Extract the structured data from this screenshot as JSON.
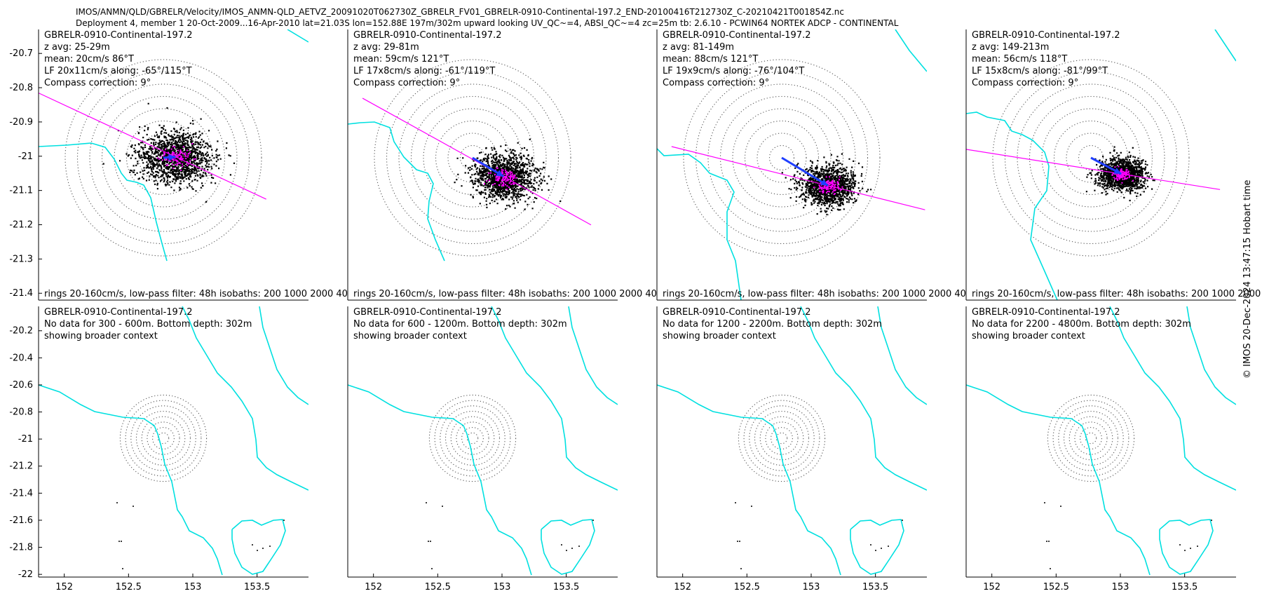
{
  "header": {
    "line1": "IMOS/ANMN/QLD/GBRELR/Velocity/IMOS_ANMN-QLD_AETVZ_20091020T062730Z_GBRELR_FV01_GBRELR-0910-Continental-197.2_END-20100416T212730Z_C-20210421T001854Z.nc",
    "line2": "Deployment 4, member 1 20-Oct-2009...16-Apr-2010 lat=21.03S lon=152.88E 197m/302m upward looking UV_QC~=4, ABSI_QC~=4 zc=25m tb: 2.6.10 - PCWIN64 NORTEK ADCP - CONTINENTAL"
  },
  "copyright": "© IMOS 20-Dec-2024 13:47:15 Hobart time",
  "colors": {
    "coast": "#00e0e0",
    "scatter": "#000000",
    "mean_arrow": "#1f3fff",
    "lf_scatter": "#ff00ff",
    "ring": "#555555",
    "axis": "#000000"
  },
  "chart_data": [
    {
      "type": "scatter",
      "panel": "top-1",
      "site": "GBRELR-0910-Continental-197.2",
      "z_avg": "z avg: 25-29m",
      "mean": "mean: 20cm/s 86°T",
      "lf": "LF 20x11cm/s along: -65°/115°T",
      "compass": "Compass correction: 9°",
      "footer": "rings 20-160cm/s, low-pass filter: 48h isobaths: 200 1000 2000 40",
      "ylim": [
        -21.42,
        -20.63
      ],
      "yticks": [
        "-20.7",
        "-20.8",
        "-20.9",
        "-21",
        "-21.1",
        "-21.2",
        "-21.3",
        "-21.4"
      ],
      "mean_speed_cms": 20,
      "mean_dir_degT": 86,
      "lf_major_cms": 20,
      "lf_minor_cms": 11,
      "along_degT": 115,
      "spread_cms": 28
    },
    {
      "type": "scatter",
      "panel": "top-2",
      "site": "GBRELR-0910-Continental-197.2",
      "z_avg": "z avg: 29-81m",
      "mean": "mean: 59cm/s 121°T",
      "lf": "LF 17x8cm/s along: -61°/119°T",
      "compass": "Compass correction: 9°",
      "footer": "rings 20-160cm/s, low-pass filter: 48h isobaths: 200 1000 2000 40",
      "mean_speed_cms": 59,
      "mean_dir_degT": 121,
      "lf_major_cms": 17,
      "lf_minor_cms": 8,
      "along_degT": 119,
      "spread_cms": 24
    },
    {
      "type": "scatter",
      "panel": "top-3",
      "site": "GBRELR-0910-Continental-197.2",
      "z_avg": "z avg: 81-149m",
      "mean": "mean: 88cm/s 121°T",
      "lf": "LF 19x9cm/s along: -76°/104°T",
      "compass": "Compass correction: 9°",
      "footer": "rings 20-160cm/s, low-pass filter: 48h isobaths: 200 1000 2000 40",
      "mean_speed_cms": 88,
      "mean_dir_degT": 121,
      "lf_major_cms": 19,
      "lf_minor_cms": 9,
      "along_degT": 104,
      "spread_cms": 20
    },
    {
      "type": "scatter",
      "panel": "top-4",
      "site": "GBRELR-0910-Continental-197.2",
      "z_avg": "z avg: 149-213m",
      "mean": "mean: 56cm/s 118°T",
      "lf": "LF 15x8cm/s along: -81°/99°T",
      "compass": "Compass correction: 9°",
      "footer": "rings 20-160cm/s, low-pass filter: 48h isobaths: 200 1000 2000 40",
      "mean_speed_cms": 56,
      "mean_dir_degT": 118,
      "lf_major_cms": 15,
      "lf_minor_cms": 8,
      "along_degT": 99,
      "spread_cms": 17
    },
    {
      "type": "scatter",
      "panel": "bottom-1",
      "site": "GBRELR-0910-Continental-197.2",
      "nodata": "No data for 300 - 600m. Bottom depth: 302m",
      "context": "showing broader context",
      "ylim": [
        -22.02,
        -20.02
      ],
      "yticks": [
        "-20.2",
        "-20.4",
        "-20.6",
        "-20.8",
        "-21",
        "-21.2",
        "-21.4",
        "-21.6",
        "-21.8",
        "-22"
      ],
      "xlim": [
        151.8,
        153.9
      ],
      "xticks": [
        "152",
        "152.5",
        "153",
        "153.5"
      ]
    },
    {
      "type": "scatter",
      "panel": "bottom-2",
      "site": "GBRELR-0910-Continental-197.2",
      "nodata": "No data for 600 - 1200m. Bottom depth: 302m",
      "context": "showing broader context",
      "xticks": [
        "152",
        "152.5",
        "153",
        "153.5"
      ]
    },
    {
      "type": "scatter",
      "panel": "bottom-3",
      "site": "GBRELR-0910-Continental-197.2",
      "nodata": "No data for 1200 - 2200m. Bottom depth: 302m",
      "context": "showing broader context",
      "xticks": [
        "152",
        "152.5",
        "153",
        "153.5"
      ]
    },
    {
      "type": "scatter",
      "panel": "bottom-4",
      "site": "GBRELR-0910-Continental-197.2",
      "nodata": "No data for 2200 - 4800m. Bottom depth: 302m",
      "context": "showing broader context",
      "xticks": [
        "152",
        "152.5",
        "153",
        "153.5"
      ]
    }
  ]
}
